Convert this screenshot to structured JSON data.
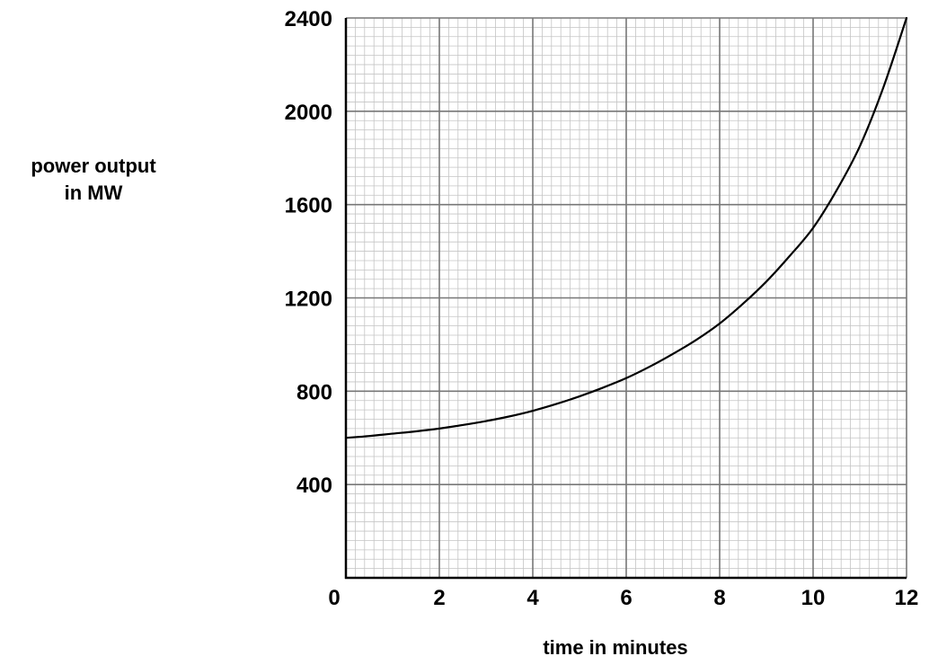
{
  "chart_data": {
    "type": "line",
    "title": "",
    "xlabel": "time in minutes",
    "ylabel_lines": [
      "power output",
      "in MW"
    ],
    "xlim": [
      0,
      12
    ],
    "ylim": [
      0,
      2400
    ],
    "x_ticks": [
      "0",
      "2",
      "4",
      "6",
      "8",
      "10",
      "12"
    ],
    "y_ticks": [
      "400",
      "800",
      "1200",
      "1600",
      "2000",
      "2400"
    ],
    "grid": {
      "major": true,
      "minor": true,
      "major_x_step": 2,
      "major_y_step": 400,
      "minor_x_step": 0.2,
      "minor_y_step": 40
    },
    "series": [
      {
        "line_color": "#000000",
        "x": [
          0,
          0.5,
          1,
          1.5,
          2,
          2.5,
          3,
          3.5,
          4,
          4.5,
          5,
          5.5,
          6,
          6.5,
          7,
          7.5,
          8,
          8.5,
          9,
          9.5,
          10,
          10.5,
          11,
          11.5,
          12
        ],
        "y": [
          600,
          608,
          618,
          628,
          640,
          655,
          672,
          692,
          716,
          745,
          778,
          815,
          856,
          905,
          960,
          1020,
          1090,
          1175,
          1270,
          1380,
          1500,
          1660,
          1850,
          2100,
          2400
        ]
      }
    ]
  }
}
